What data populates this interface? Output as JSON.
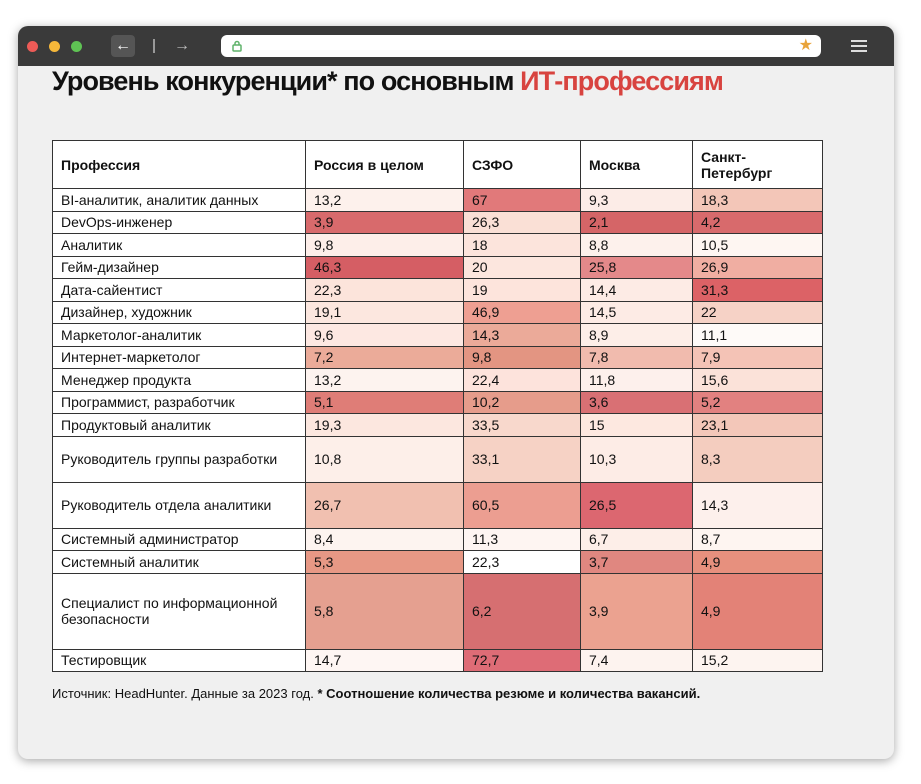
{
  "browser": {
    "url": "",
    "icons": {
      "back": "arrow-left-icon",
      "forward": "arrow-right-icon",
      "lock": "lock-icon",
      "bookmark": "star-icon",
      "menu": "hamburger-menu-icon"
    },
    "colors": {
      "bookmark_star": "#e8a33a",
      "chrome": "#3a3a3a"
    }
  },
  "title": {
    "main": "Уровень конкуренции* по основным ",
    "accent": "ИТ-профессиям",
    "accent_color": "#d8433f"
  },
  "table": {
    "headers": [
      "Профессия",
      "Россия в целом",
      "СЗФО",
      "Москва",
      "Санкт-Петербург"
    ],
    "rows": [
      {
        "profession": "BI-аналитик, аналитик данных",
        "values": [
          "13,2",
          "67",
          "9,3",
          "18,3"
        ]
      },
      {
        "profession": "DevOps-инженер",
        "values": [
          "3,9",
          "26,3",
          "2,1",
          "4,2"
        ]
      },
      {
        "profession": "Аналитик",
        "values": [
          "9,8",
          "18",
          "8,8",
          "10,5"
        ]
      },
      {
        "profession": "Гейм-дизайнер",
        "values": [
          "46,3",
          "20",
          "25,8",
          "26,9"
        ]
      },
      {
        "profession": "Дата-сайентист",
        "values": [
          "22,3",
          "19",
          "14,4",
          "31,3"
        ]
      },
      {
        "profession": "Дизайнер, художник",
        "values": [
          "19,1",
          "46,9",
          "14,5",
          "22"
        ]
      },
      {
        "profession": "Маркетолог-аналитик",
        "values": [
          "9,6",
          "14,3",
          "8,9",
          "11,1"
        ]
      },
      {
        "profession": "Интернет-маркетолог",
        "values": [
          "7,2",
          "9,8",
          "7,8",
          "7,9"
        ]
      },
      {
        "profession": "Менеджер продукта",
        "values": [
          "13,2",
          "22,4",
          "11,8",
          "15,6"
        ]
      },
      {
        "profession": "Программист, разработчик",
        "values": [
          "5,1",
          "10,2",
          "3,6",
          "5,2"
        ]
      },
      {
        "profession": "Продуктовый аналитик",
        "values": [
          "19,3",
          "33,5",
          "15",
          "23,1"
        ]
      },
      {
        "profession": "Руководитель группы разработки",
        "values": [
          "10,8",
          "33,1",
          "10,3",
          "8,3"
        ]
      },
      {
        "profession": "Руководитель отдела аналитики",
        "values": [
          "26,7",
          "60,5",
          "26,5",
          "14,3"
        ]
      },
      {
        "profession": "Системный администратор",
        "values": [
          "8,4",
          "11,3",
          "6,7",
          "8,7"
        ]
      },
      {
        "profession": "Системный аналитик",
        "values": [
          "5,3",
          "22,3",
          "3,7",
          "4,9"
        ]
      },
      {
        "profession": "Специалист по информационной безопасности",
        "values": [
          "5,8",
          "6,2",
          "3,9",
          "4,9"
        ]
      },
      {
        "profession": "Тестировщик",
        "values": [
          "14,7",
          "72,7",
          "7,4",
          "15,2"
        ]
      }
    ],
    "cell_colors": [
      [
        "#fdf1ec",
        "#e1797a",
        "#fcece7",
        "#f3c6b8"
      ],
      [
        "#d86a6c",
        "#fae0d6",
        "#d56567",
        "#d86a6c"
      ],
      [
        "#fdeee9",
        "#fce4dc",
        "#fdf1ec",
        "#fef6f2"
      ],
      [
        "#d55e64",
        "#fce6de",
        "#e4898a",
        "#f0aea2"
      ],
      [
        "#fce4db",
        "#fde4dc",
        "#fdebe5",
        "#dc6266"
      ],
      [
        "#fce7df",
        "#ee9f92",
        "#fdebe5",
        "#f6d2c6"
      ],
      [
        "#fde8e2",
        "#ebaa99",
        "#fdeee8",
        "#fefaf8"
      ],
      [
        "#ebab99",
        "#e39582",
        "#f1bbae",
        "#f4c3b6"
      ],
      [
        "#fdf3ef",
        "#fde3dc",
        "#fdf0ec",
        "#fbe2d9"
      ],
      [
        "#df7d77",
        "#e69c8b",
        "#d97074",
        "#e28180"
      ],
      [
        "#fce7df",
        "#f8d8cc",
        "#fde8e0",
        "#f3c7b9"
      ],
      [
        "#fdefe9",
        "#f6d2c5",
        "#fdece6",
        "#f4cdbf"
      ],
      [
        "#f1c0b0",
        "#ec9e91",
        "#dc6770",
        "#fdf0ec"
      ],
      [
        "#fdf4f0",
        "#fef5f2",
        "#fdeee8",
        "#fef5f1"
      ],
      [
        "#e79885",
        "#ffffff",
        "#e08780",
        "#e7907e"
      ],
      [
        "#e5a090",
        "#d66f71",
        "#eba290",
        "#e38277"
      ],
      [
        "#fef6f3",
        "#de6c76",
        "#fdf3ef",
        "#fdf4f0"
      ]
    ],
    "row_heights": [
      "s",
      "s",
      "s",
      "s",
      "s",
      "s",
      "s",
      "s",
      "s",
      "s",
      "s",
      "l",
      "l",
      "s",
      "s",
      "xl",
      "s"
    ]
  },
  "footnote": {
    "source": "Источник: HeadHunter. Данные за 2023 год.",
    "note": "* Соотношение количества резюме и количества вакансий."
  }
}
